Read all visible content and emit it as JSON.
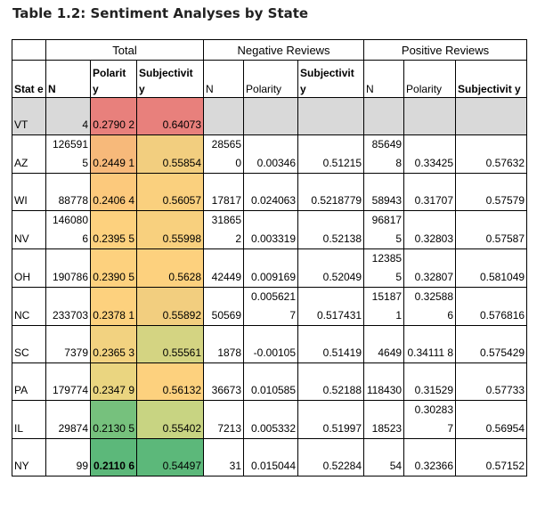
{
  "title": "Table 1.2: Sentiment Analyses by State",
  "groups": {
    "blank": "",
    "total": "Total",
    "negative": "Negative Reviews",
    "positive": "Positive Reviews"
  },
  "columns": [
    "Stat e",
    "N",
    "Polarit y",
    "Subjectivit y",
    "N",
    "Polarity",
    "Subjectivit y",
    "N",
    "Polarity",
    "Subjectivit y"
  ],
  "rows": [
    [
      "VT",
      "4",
      "0.2790 2",
      "0.64073",
      "",
      "",
      "",
      "",
      "",
      ""
    ],
    [
      "AZ",
      "126591 5",
      "0.2449 1",
      "0.55854",
      "28565 0",
      "0.00346",
      "0.51215",
      "85649 8",
      "0.33425",
      "0.57632"
    ],
    [
      "WI",
      "88778",
      "0.2406 4",
      "0.56057",
      "17817",
      "0.024063",
      "0.5218779",
      "58943",
      "0.31707",
      "0.57579"
    ],
    [
      "NV",
      "146080 6",
      "0.2395 5",
      "0.55998",
      "31865 2",
      "0.003319",
      "0.52138",
      "96817 5",
      "0.32803",
      "0.57587"
    ],
    [
      "OH",
      "190786",
      "0.2390 5",
      "0.5628",
      "42449",
      "0.009169",
      "0.52049",
      "12385 5",
      "0.32807",
      "0.581049"
    ],
    [
      "NC",
      "233703",
      "0.2378 1",
      "0.55892",
      "50569",
      "0.005621 7",
      "0.517431",
      "15187 1",
      "0.32588 6",
      "0.576816"
    ],
    [
      "SC",
      "7379",
      "0.2365 3",
      "0.55561",
      "1878",
      "-0.00105",
      "0.51419",
      "4649",
      "0.34111 8",
      "0.575429"
    ],
    [
      "PA",
      "179774",
      "0.2347 9",
      "0.56132",
      "36673",
      "0.010585",
      "0.52188",
      "118430",
      "0.31529",
      "0.57733"
    ],
    [
      "IL",
      "29874",
      "0.2130 5",
      "0.55402",
      "7213",
      "0.005332",
      "0.51997",
      "18523",
      "0.30283 7",
      "0.56954"
    ],
    [
      "NY",
      "99",
      "0.2110 6",
      "0.54497",
      "31",
      "0.015044",
      "0.52284",
      "54",
      "0.32366",
      "0.57152"
    ]
  ],
  "highlight_colors": {
    "polarity": [
      "#e8807c",
      "#f7b97a",
      "#fcc97c",
      "#fdd17e",
      "#fdd17e",
      "#fdd17e",
      "#f2d280",
      "#ead580",
      "#76c17d",
      "#5cb87a"
    ],
    "subjectivity": [
      "#e8807c",
      "#f2ce7f",
      "#fad07e",
      "#f8d07e",
      "#fdd17e",
      "#f2ce7f",
      "#d4d482",
      "#fdd17e",
      "#c8d482",
      "#5cb87a"
    ]
  },
  "bold_cells": [
    [
      9,
      2
    ]
  ],
  "gray_row": 0,
  "gray_color": "#d9d9d9"
}
